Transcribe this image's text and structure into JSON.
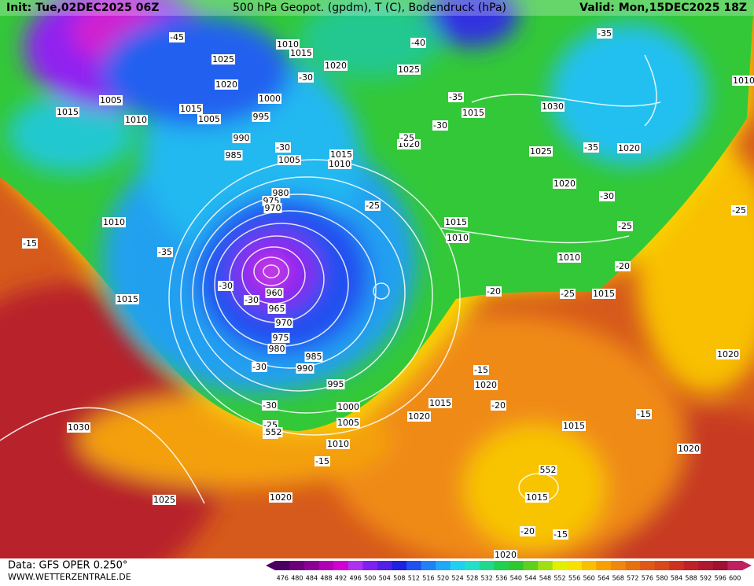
{
  "header": {
    "init": "Init: Tue,02DEC2025 06Z",
    "title": "500 hPa Geopot. (gpdm), T (C), Bodendruck (hPa)",
    "valid": "Valid: Mon,15DEC2025 18Z"
  },
  "footer": {
    "data": "Data: GFS OPER 0.250°",
    "site": "WWW.WETTERZENTRALE.DE"
  },
  "colorbar": {
    "values": [
      476,
      480,
      484,
      488,
      492,
      496,
      500,
      504,
      508,
      512,
      516,
      520,
      524,
      528,
      532,
      536,
      540,
      544,
      548,
      552,
      556,
      560,
      564,
      568,
      572,
      576,
      580,
      584,
      588,
      592,
      596,
      600
    ],
    "colors": [
      "#4a0060",
      "#6a007a",
      "#8a0096",
      "#b000b4",
      "#d000d0",
      "#b030f0",
      "#8020f0",
      "#5020e8",
      "#2020e0",
      "#2050f0",
      "#2080f8",
      "#20a8f8",
      "#20d0f0",
      "#20e0c8",
      "#20d890",
      "#20d050",
      "#30c830",
      "#60d020",
      "#a0e010",
      "#e0f000",
      "#f8e000",
      "#f8c000",
      "#f8a000",
      "#f08810",
      "#e87010",
      "#e05818",
      "#d84818",
      "#d03020",
      "#c02028",
      "#b01830",
      "#a01030",
      "#c02060"
    ]
  },
  "isobar_labels": [
    1010,
    1015,
    1025,
    1020,
    1020,
    1005,
    1010,
    1015,
    1015,
    1005,
    1000,
    995,
    990,
    985,
    1005,
    1015,
    1010,
    980,
    975,
    970,
    1010,
    1015,
    960,
    965,
    970,
    975,
    980,
    985,
    990,
    995,
    1000,
    1005,
    1010,
    1020,
    1025,
    1030,
    1025,
    1030,
    1015,
    1020,
    1025,
    1020,
    1020,
    1015,
    1010,
    1010,
    1015,
    1020,
    1015,
    1020,
    1015,
    1020,
    1020,
    1015,
    1020,
    1010
  ],
  "temperature_labels": [
    -45,
    -40,
    -35,
    -35,
    -30,
    -30,
    -30,
    -25,
    -35,
    -30,
    -25,
    -25,
    -25,
    -35,
    -15,
    -20,
    -30,
    -30,
    -20,
    -25,
    -30,
    -15,
    -20,
    -15,
    -30,
    -25,
    -20,
    -15,
    -20,
    -15,
    552,
    552
  ]
}
